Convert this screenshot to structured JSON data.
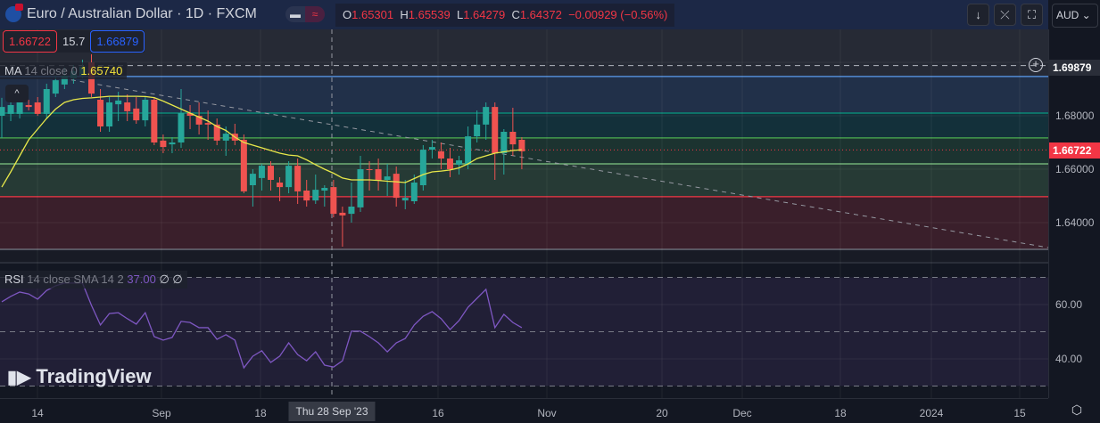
{
  "header": {
    "title": "Euro / Australian Dollar · 1D · FXCM",
    "toggle_left": "▬",
    "toggle_right": "≈",
    "ohlc": {
      "o_label": "O",
      "o": "1.65301",
      "h_label": "H",
      "h": "1.65539",
      "l_label": "L",
      "l": "1.64279",
      "c_label": "C",
      "c": "1.64372",
      "change": "−0.00929 (−0.56%)"
    },
    "buttons": {
      "down": "↓",
      "collapse": "⤫",
      "fullscreen": "⛶"
    },
    "currency": "AUD ⌄"
  },
  "trade": {
    "sell": "1.66722",
    "spread": "15.7",
    "buy": "1.66879"
  },
  "ma": {
    "label": "MA",
    "params": "14 close 0",
    "value": "1.65740"
  },
  "rsi": {
    "label": "RSI",
    "params": "14 close SMA 14 2",
    "value": "37.00",
    "extra": "∅ ∅"
  },
  "logo": "TradingView",
  "price_axis": {
    "crosshair": "1.69879",
    "ticks": [
      "1.68000",
      "1.66000",
      "1.64000"
    ],
    "last": "1.66722",
    "rsi_ticks": [
      "60.00",
      "40.00"
    ]
  },
  "time_axis": {
    "labels": [
      "14",
      "Sep",
      "18",
      "16",
      "Nov",
      "20",
      "Dec",
      "18",
      "2024",
      "15"
    ],
    "crosshair": "Thu 28 Sep '23"
  },
  "colors": {
    "up": "#26a69a",
    "down": "#ef5350",
    "ma": "#e8e84a",
    "rsi": "#7e57c2"
  },
  "chart_data": {
    "type": "candlestick",
    "candles": [
      [
        1.68,
        1.6867,
        1.6717,
        1.6833
      ],
      [
        1.6807,
        1.685,
        1.678,
        1.684
      ],
      [
        1.6807,
        1.688,
        1.679,
        1.686
      ],
      [
        1.684,
        1.686,
        1.682,
        1.6833
      ],
      [
        1.685,
        1.687,
        1.68,
        1.6807
      ],
      [
        1.6807,
        1.692,
        1.679,
        1.69
      ],
      [
        1.6883,
        1.695,
        1.687,
        1.6933
      ],
      [
        1.6917,
        1.698,
        1.69,
        1.695
      ],
      [
        1.694,
        1.699,
        1.692,
        1.6967
      ],
      [
        1.695,
        1.701,
        1.694,
        1.6983
      ],
      [
        1.7,
        1.703,
        1.687,
        1.6883
      ],
      [
        1.686,
        1.69,
        1.674,
        1.676
      ],
      [
        1.676,
        1.687,
        1.674,
        1.685
      ],
      [
        1.6843,
        1.689,
        1.678,
        1.6857
      ],
      [
        1.685,
        1.688,
        1.678,
        1.6817
      ],
      [
        1.6827,
        1.687,
        1.677,
        1.6783
      ],
      [
        1.6783,
        1.687,
        1.676,
        1.686
      ],
      [
        1.686,
        1.687,
        1.669,
        1.67
      ],
      [
        1.6707,
        1.673,
        1.666,
        1.6683
      ],
      [
        1.6693,
        1.672,
        1.666,
        1.67
      ],
      [
        1.67,
        1.69,
        1.668,
        1.681
      ],
      [
        1.681,
        1.684,
        1.675,
        1.68
      ],
      [
        1.68,
        1.685,
        1.673,
        1.6767
      ],
      [
        1.6773,
        1.682,
        1.671,
        1.6767
      ],
      [
        1.6767,
        1.679,
        1.669,
        1.6707
      ],
      [
        1.6707,
        1.676,
        1.665,
        1.6733
      ],
      [
        1.6733,
        1.677,
        1.669,
        1.6707
      ],
      [
        1.671,
        1.673,
        1.651,
        1.6517
      ],
      [
        1.654,
        1.66,
        1.646,
        1.6583
      ],
      [
        1.6567,
        1.662,
        1.652,
        1.6613
      ],
      [
        1.6613,
        1.663,
        1.652,
        1.656
      ],
      [
        1.655,
        1.657,
        1.648,
        1.6533
      ],
      [
        1.6533,
        1.663,
        1.651,
        1.6613
      ],
      [
        1.6613,
        1.664,
        1.647,
        1.6517
      ],
      [
        1.652,
        1.656,
        1.646,
        1.6483
      ],
      [
        1.6483,
        1.658,
        1.647,
        1.6523
      ],
      [
        1.652,
        1.654,
        1.646,
        1.653
      ],
      [
        1.6533,
        1.656,
        1.642,
        1.6433
      ],
      [
        1.6437,
        1.646,
        1.631,
        1.6427
      ],
      [
        1.6433,
        1.655,
        1.64,
        1.646
      ],
      [
        1.6457,
        1.665,
        1.644,
        1.66
      ],
      [
        1.66,
        1.663,
        1.652,
        1.6597
      ],
      [
        1.66,
        1.664,
        1.652,
        1.6557
      ],
      [
        1.656,
        1.662,
        1.65,
        1.6573
      ],
      [
        1.6583,
        1.661,
        1.646,
        1.6493
      ],
      [
        1.6483,
        1.656,
        1.645,
        1.6493
      ],
      [
        1.648,
        1.658,
        1.647,
        1.655
      ],
      [
        1.654,
        1.669,
        1.652,
        1.6673
      ],
      [
        1.6673,
        1.671,
        1.664,
        1.6683
      ],
      [
        1.6667,
        1.67,
        1.66,
        1.664
      ],
      [
        1.664,
        1.668,
        1.657,
        1.66
      ],
      [
        1.6617,
        1.665,
        1.658,
        1.6633
      ],
      [
        1.6617,
        1.676,
        1.66,
        1.6723
      ],
      [
        1.6723,
        1.682,
        1.67,
        1.6767
      ],
      [
        1.6767,
        1.685,
        1.671,
        1.6833
      ],
      [
        1.6833,
        1.685,
        1.656,
        1.666
      ],
      [
        1.666,
        1.675,
        1.658,
        1.674
      ],
      [
        1.674,
        1.683,
        1.665,
        1.6693
      ],
      [
        1.671,
        1.672,
        1.66,
        1.6667
      ]
    ],
    "ma": [
      1.6533,
      1.659,
      1.665,
      1.671,
      1.675,
      1.679,
      1.6825,
      1.685,
      1.686,
      1.6865,
      1.6867,
      1.687,
      1.6873,
      1.6873,
      1.6873,
      1.6873,
      1.6872,
      1.6868,
      1.6855,
      1.684,
      1.6825,
      1.681,
      1.6795,
      1.678,
      1.676,
      1.6745,
      1.672,
      1.67,
      1.669,
      1.668,
      1.667,
      1.666,
      1.6653,
      1.665,
      1.6635,
      1.6617,
      1.66,
      1.6585,
      1.6567,
      1.656,
      1.656,
      1.656,
      1.6558,
      1.6555,
      1.6553,
      1.655,
      1.6565,
      1.658,
      1.659,
      1.6593,
      1.6597,
      1.6605,
      1.662,
      1.664,
      1.665,
      1.666,
      1.6665,
      1.667,
      1.6673
    ],
    "rsi": [
      61.0,
      63.0,
      64.6,
      63.9,
      62.0,
      65.2,
      66.9,
      67.9,
      67.9,
      67.9,
      59.7,
      52.5,
      56.7,
      57.0,
      54.8,
      52.8,
      57.0,
      48.2,
      46.9,
      47.9,
      53.8,
      53.4,
      51.5,
      51.5,
      47.2,
      48.9,
      46.9,
      36.7,
      41.0,
      43.0,
      38.7,
      41.0,
      45.9,
      41.6,
      39.3,
      42.6,
      37.7,
      37.0,
      39.3,
      50.2,
      50.2,
      48.2,
      45.9,
      42.6,
      45.9,
      47.5,
      52.5,
      55.7,
      57.4,
      54.8,
      50.8,
      54.1,
      59.0,
      62.3,
      65.6,
      51.5,
      56.4,
      53.4,
      51.5
    ],
    "levels": [
      1.69879,
      1.6947,
      1.681,
      1.6717,
      1.662,
      1.6497,
      1.63
    ],
    "rsi_bands": [
      70,
      50,
      30
    ]
  }
}
